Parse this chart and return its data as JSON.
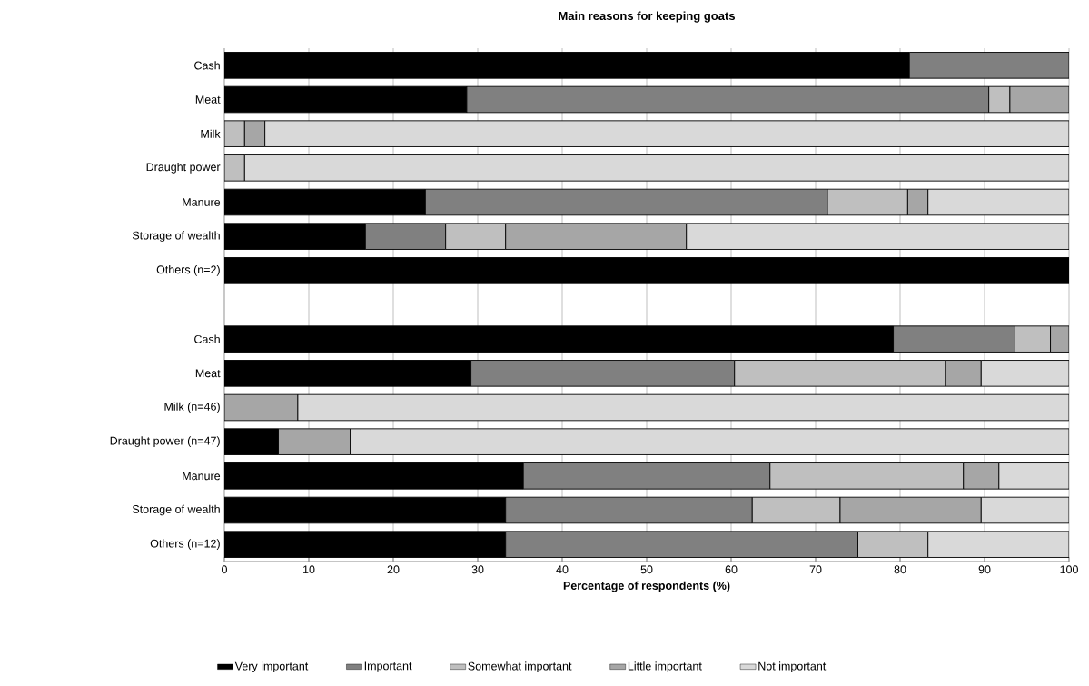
{
  "chart_data": {
    "type": "bar",
    "orientation": "horizontal",
    "stacked": true,
    "title": "Main reasons for keeping goats",
    "xlabel": "Percentage of respondents (%)",
    "categories": [
      "Cash",
      "Meat",
      "Milk",
      "Draught power",
      "Manure",
      "Storage of wealth",
      "Others (n=2)",
      null,
      "Cash",
      "Meat",
      "Milk (n=46)",
      "Draught power (n=47)",
      "Manure",
      "Storage of wealth",
      "Others (n=12)"
    ],
    "series": [
      {
        "name": "Very important",
        "color": "#000000",
        "values": [
          81.1,
          28.7,
          null,
          null,
          23.8,
          16.7,
          100,
          null,
          79.2,
          29.2,
          null,
          6.4,
          35.4,
          33.3,
          33.3
        ]
      },
      {
        "name": "Important",
        "color": "#808080",
        "values": [
          18.9,
          61.8,
          null,
          null,
          47.6,
          9.5,
          null,
          null,
          14.4,
          31.2,
          null,
          null,
          29.2,
          29.2,
          41.7
        ]
      },
      {
        "name": "Somewhat important",
        "color": "#bfbfbf",
        "values": [
          null,
          2.5,
          2.4,
          2.4,
          9.5,
          7.1,
          null,
          null,
          4.2,
          25.0,
          null,
          null,
          22.9,
          10.4,
          8.3
        ]
      },
      {
        "name": "Little important",
        "color": "#a6a6a6",
        "values": [
          null,
          7.0,
          2.4,
          null,
          2.4,
          21.4,
          null,
          null,
          2.2,
          4.2,
          8.7,
          8.5,
          4.2,
          16.7,
          null
        ]
      },
      {
        "name": "Not important",
        "color": "#d9d9d9",
        "values": [
          null,
          null,
          95.2,
          97.6,
          16.7,
          45.3,
          null,
          null,
          null,
          10.4,
          91.3,
          85.1,
          8.3,
          10.4,
          16.7
        ]
      }
    ],
    "xlim": [
      0,
      100
    ],
    "xticks": [
      0,
      10,
      20,
      30,
      40,
      50,
      60,
      70,
      80,
      90,
      100
    ],
    "grid": "x",
    "legend": "bottom"
  }
}
